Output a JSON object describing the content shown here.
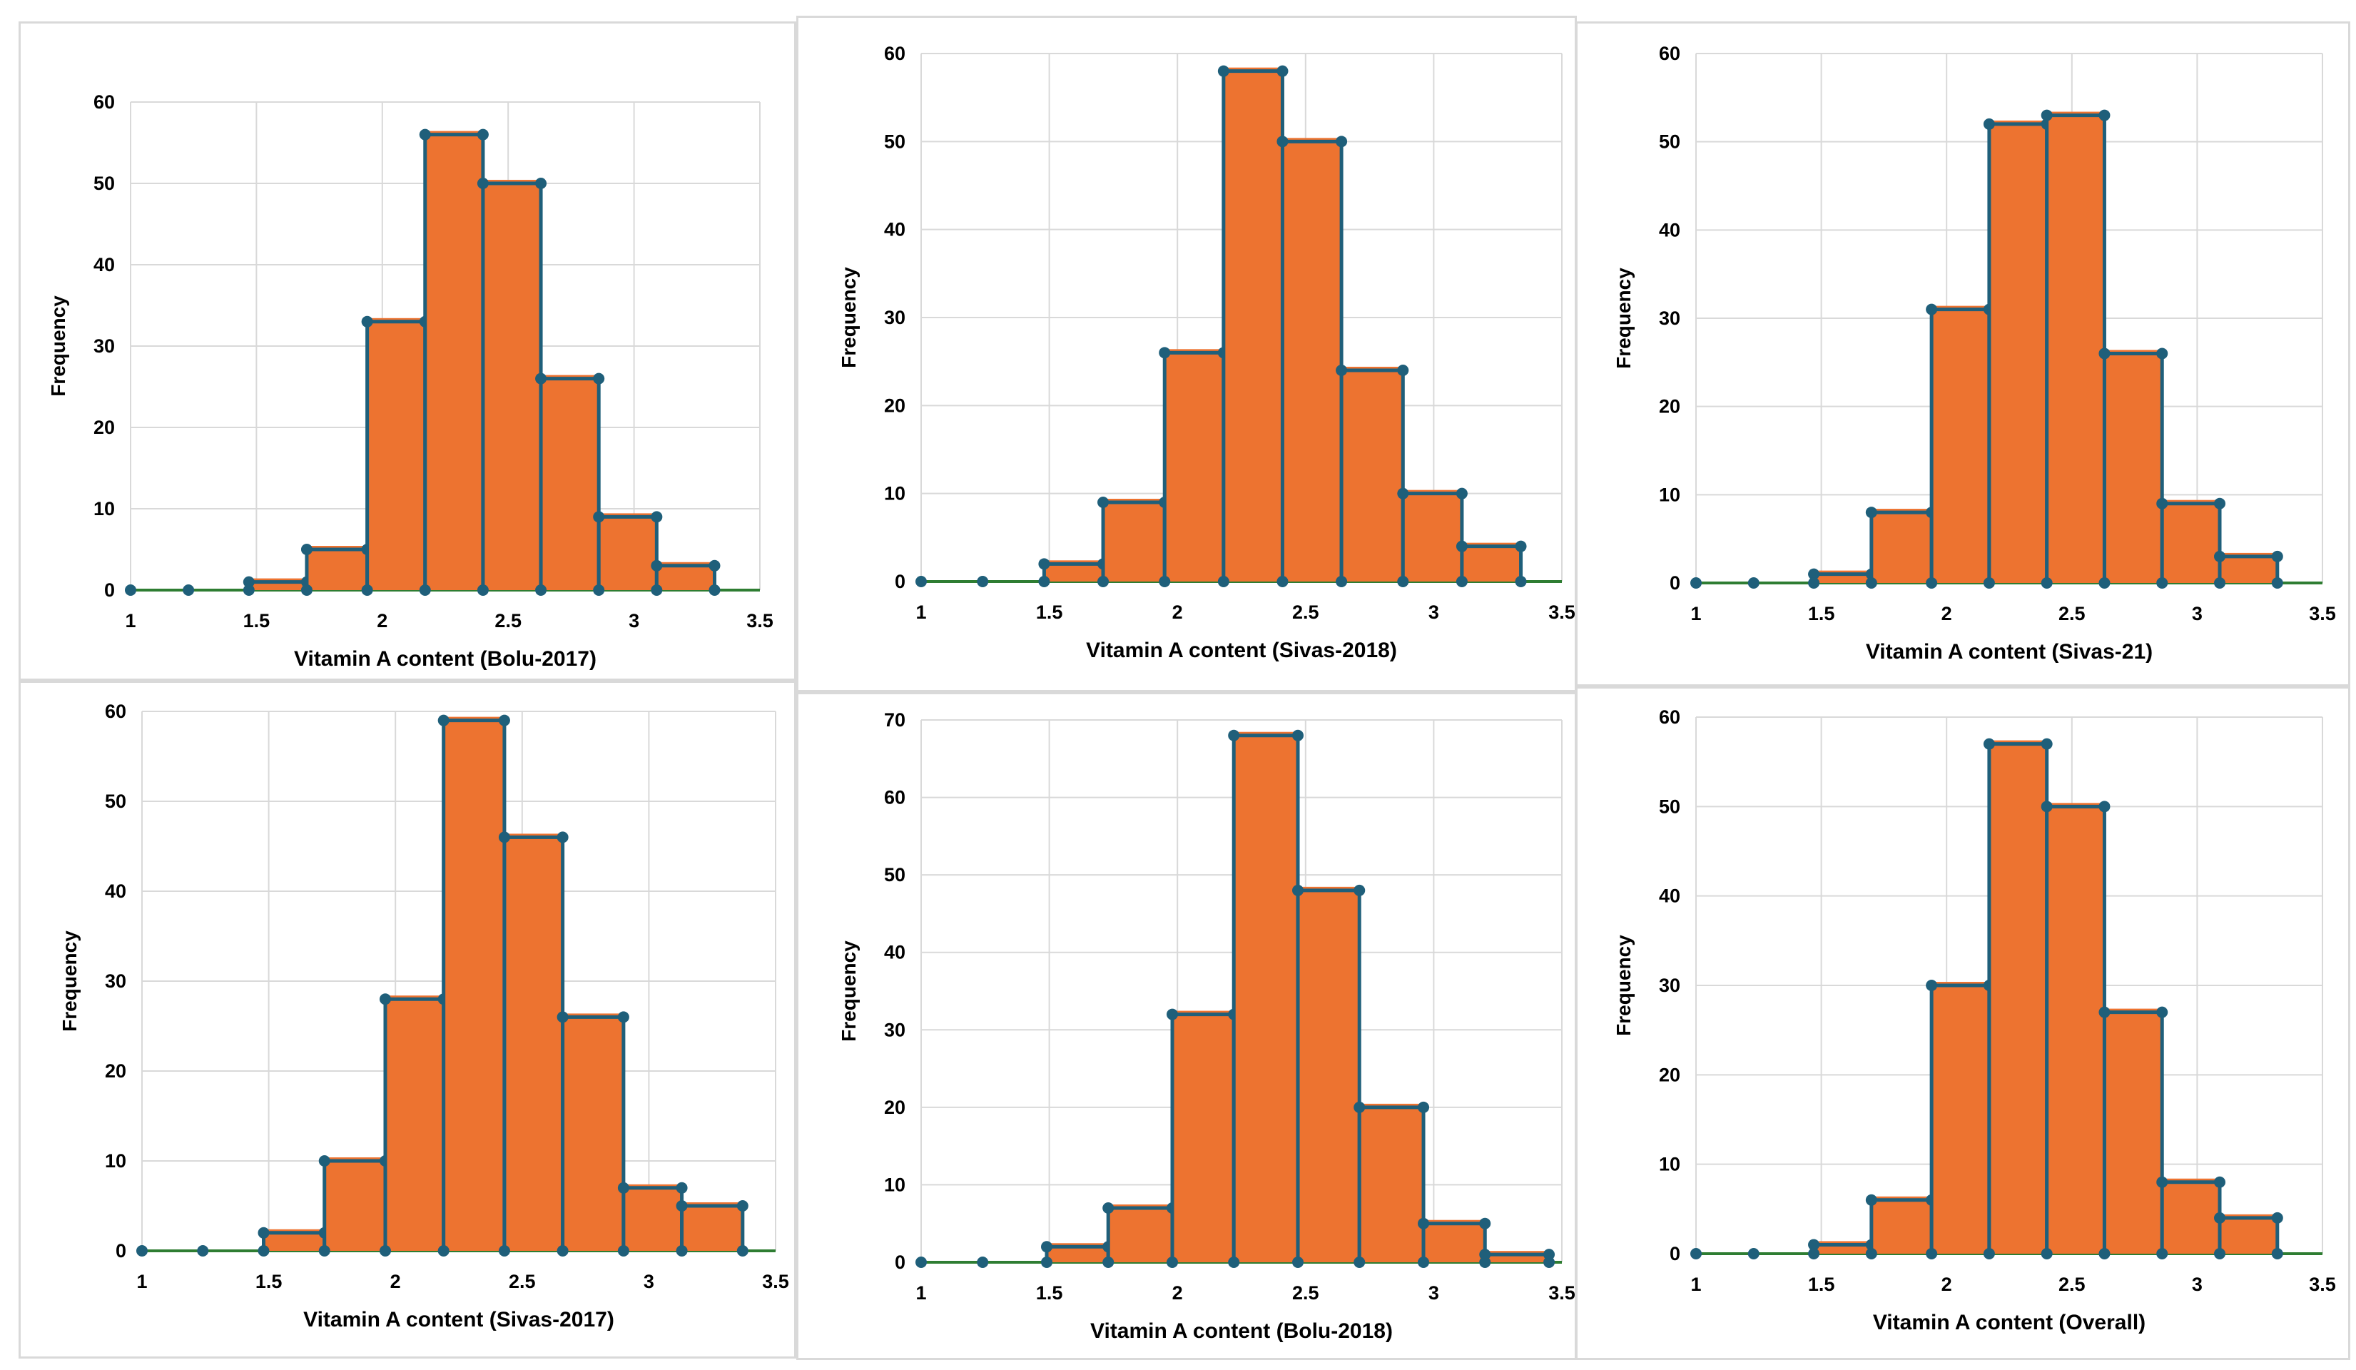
{
  "colors": {
    "bar_fill": "#ED7330",
    "bar_stroke": "#1F5F7A",
    "marker": "#1F5F7A",
    "baseline": "#2E7D32",
    "grid": "#d9d9d9",
    "text": "#000000"
  },
  "chart_data": [
    {
      "type": "bar",
      "title": "",
      "xlabel": "Vitamin A content (Bolu-2017)",
      "ylabel": "Frequency",
      "xlim": [
        1,
        3.5
      ],
      "ylim": [
        0,
        60
      ],
      "xticks": [
        "1",
        "1.5",
        "2",
        "2.5",
        "3",
        "3.5"
      ],
      "yticks": [
        "0",
        "10",
        "20",
        "30",
        "40",
        "50",
        "60"
      ],
      "baseline_points": [
        1.0,
        1.23
      ],
      "bin_edges": [
        1.47,
        1.7,
        1.94,
        2.17,
        2.4,
        2.63,
        2.86,
        3.09,
        3.32
      ],
      "values": [
        1,
        5,
        33,
        56,
        50,
        26,
        9,
        3
      ]
    },
    {
      "type": "bar",
      "title": "",
      "xlabel": "Vitamin A content (Sivas-2018)",
      "ylabel": "Frequency",
      "xlim": [
        1,
        3.5
      ],
      "ylim": [
        0,
        60
      ],
      "xticks": [
        "1",
        "1.5",
        "2",
        "2.5",
        "3",
        "3.5"
      ],
      "yticks": [
        "0",
        "10",
        "20",
        "30",
        "40",
        "50",
        "60"
      ],
      "baseline_points": [
        1.0,
        1.24
      ],
      "bin_edges": [
        1.48,
        1.71,
        1.95,
        2.18,
        2.41,
        2.64,
        2.88,
        3.11,
        3.34
      ],
      "values": [
        2,
        9,
        26,
        58,
        50,
        24,
        10,
        4
      ]
    },
    {
      "type": "bar",
      "title": "",
      "xlabel": "Vitamin A content (Sivas-21)",
      "ylabel": "Frequency",
      "xlim": [
        1,
        3.5
      ],
      "ylim": [
        0,
        60
      ],
      "xticks": [
        "1",
        "1.5",
        "2",
        "2.5",
        "3",
        "3.5"
      ],
      "yticks": [
        "0",
        "10",
        "20",
        "30",
        "40",
        "50",
        "60"
      ],
      "baseline_points": [
        1.0,
        1.23
      ],
      "bin_edges": [
        1.47,
        1.7,
        1.94,
        2.17,
        2.4,
        2.63,
        2.86,
        3.09,
        3.32
      ],
      "values": [
        1,
        8,
        31,
        52,
        53,
        26,
        9,
        3
      ]
    },
    {
      "type": "bar",
      "title": "",
      "xlabel": "Vitamin A content (Sivas-2017)",
      "ylabel": "Frequency",
      "xlim": [
        1,
        3.5
      ],
      "ylim": [
        0,
        60
      ],
      "xticks": [
        "1",
        "1.5",
        "2",
        "2.5",
        "3",
        "3.5"
      ],
      "yticks": [
        "0",
        "10",
        "20",
        "30",
        "40",
        "50",
        "60"
      ],
      "baseline_points": [
        1.0,
        1.24
      ],
      "bin_edges": [
        1.48,
        1.72,
        1.96,
        2.19,
        2.43,
        2.66,
        2.9,
        3.13,
        3.37
      ],
      "values": [
        2,
        10,
        28,
        59,
        46,
        26,
        7,
        5
      ]
    },
    {
      "type": "bar",
      "title": "",
      "xlabel": "Vitamin A content (Bolu-2018)",
      "ylabel": "Frequency",
      "xlim": [
        1,
        3.5
      ],
      "ylim": [
        0,
        70
      ],
      "xticks": [
        "1",
        "1.5",
        "2",
        "2.5",
        "3",
        "3.5"
      ],
      "yticks": [
        "0",
        "10",
        "20",
        "30",
        "40",
        "50",
        "60",
        "70"
      ],
      "baseline_points": [
        1.0,
        1.24
      ],
      "bin_edges": [
        1.49,
        1.73,
        1.98,
        2.22,
        2.47,
        2.71,
        2.96,
        3.2,
        3.45
      ],
      "values": [
        2,
        7,
        32,
        68,
        48,
        20,
        5,
        1
      ]
    },
    {
      "type": "bar",
      "title": "",
      "xlabel": "Vitamin A content (Overall)",
      "ylabel": "Frequency",
      "xlim": [
        1,
        3.5
      ],
      "ylim": [
        0,
        60
      ],
      "xticks": [
        "1",
        "1.5",
        "2",
        "2.5",
        "3",
        "3.5"
      ],
      "yticks": [
        "0",
        "10",
        "20",
        "30",
        "40",
        "50",
        "60"
      ],
      "baseline_points": [
        1.0,
        1.23
      ],
      "bin_edges": [
        1.47,
        1.7,
        1.94,
        2.17,
        2.4,
        2.63,
        2.86,
        3.09,
        3.32
      ],
      "values": [
        1,
        6,
        30,
        57,
        50,
        27,
        8,
        4
      ]
    }
  ]
}
